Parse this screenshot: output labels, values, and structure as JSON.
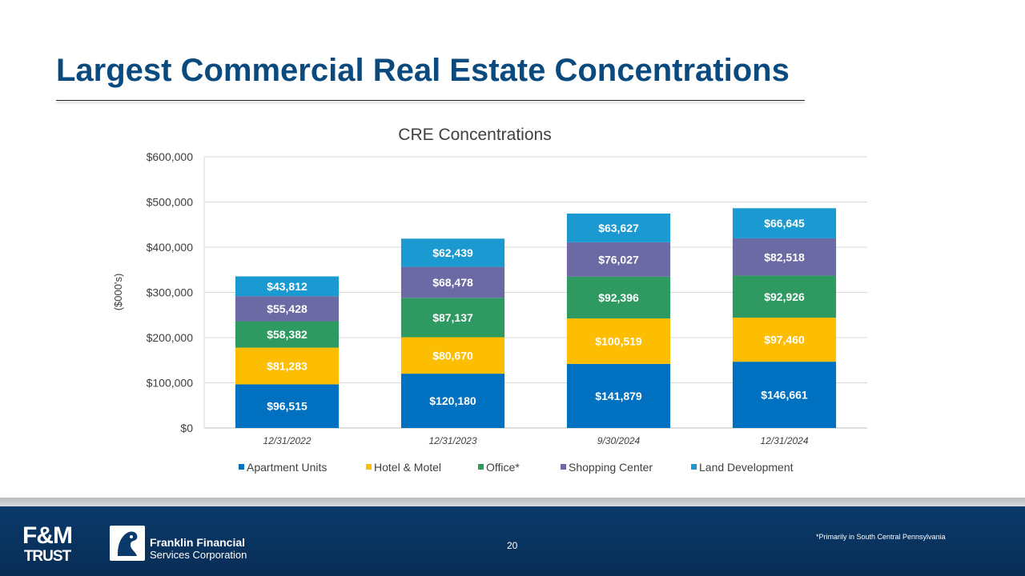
{
  "slide": {
    "title": "Largest Commercial Real Estate Concentrations",
    "page_number": "20",
    "footnote": "*Primarily in South Central Pennsylvania"
  },
  "logos": {
    "fm_top": "F&M",
    "fm_bottom": "TRUST",
    "ffsc_line1": "Franklin Financial",
    "ffsc_line2": "Services Corporation"
  },
  "chart_data": {
    "type": "bar",
    "stacked": true,
    "title": "CRE Concentrations",
    "xlabel": "",
    "ylabel": "($000's)",
    "ylim": [
      0,
      600000
    ],
    "yticks": [
      0,
      100000,
      200000,
      300000,
      400000,
      500000,
      600000
    ],
    "ytick_labels": [
      "$0",
      "$100,000",
      "$200,000",
      "$300,000",
      "$400,000",
      "$500,000",
      "$600,000"
    ],
    "grid": true,
    "legend_position": "bottom",
    "categories": [
      "12/31/2022",
      "12/31/2023",
      "9/30/2024",
      "12/31/2024"
    ],
    "series": [
      {
        "name": "Apartment Units",
        "color": "#0070c0",
        "values": [
          96515,
          120180,
          141879,
          146661
        ],
        "labels": [
          "$96,515",
          "$120,180",
          "$141,879",
          "$146,661"
        ]
      },
      {
        "name": "Hotel & Motel",
        "color": "#fdbd00",
        "values": [
          81283,
          80670,
          100519,
          97460
        ],
        "labels": [
          "$81,283",
          "$80,670",
          "$100,519",
          "$97,460"
        ]
      },
      {
        "name": "Office*",
        "color": "#2e9a62",
        "values": [
          58382,
          87137,
          92396,
          92926
        ],
        "labels": [
          "$58,382",
          "$87,137",
          "$92,396",
          "$92,926"
        ]
      },
      {
        "name": "Shopping Center",
        "color": "#6b6aa4",
        "values": [
          55428,
          68478,
          76027,
          82518
        ],
        "labels": [
          "$55,428",
          "$68,478",
          "$76,027",
          "$82,518"
        ]
      },
      {
        "name": "Land Development",
        "color": "#1a9ad0",
        "values": [
          43812,
          62439,
          63627,
          66645
        ],
        "labels": [
          "$43,812",
          "$62,439",
          "$63,627",
          "$66,645"
        ]
      }
    ]
  },
  "colors": {
    "title": "#0b4a7e",
    "footer": "#0a3a6b",
    "label_dark": "#000000"
  }
}
